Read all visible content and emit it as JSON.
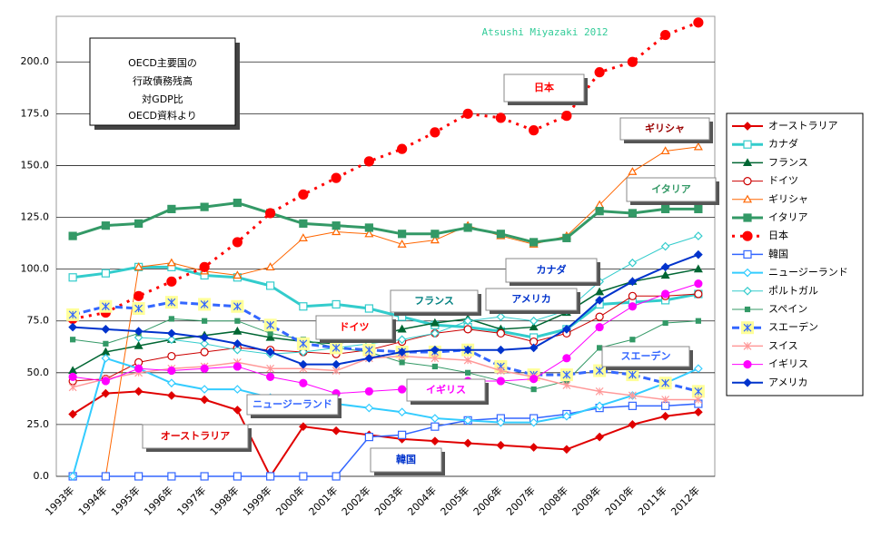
{
  "chart_data": {
    "type": "line",
    "title": "OECD主要国の\n行政債務残高\n対GDP比",
    "subtitle": "OECD資料より",
    "credit": "Atsushi Miyazaki 2012",
    "categories": [
      "1993年",
      "1994年",
      "1995年",
      "1996年",
      "1997年",
      "1998年",
      "1999年",
      "2000年",
      "2001年",
      "2002年",
      "2003年",
      "2004年",
      "2005年",
      "2006年",
      "2007年",
      "2008年",
      "2009年",
      "2010年",
      "2011年",
      "2012年"
    ],
    "ylim": [
      0,
      222
    ],
    "yticks": [
      {
        "value": 0,
        "label": "0.0"
      },
      {
        "value": 25,
        "label": "25.0"
      },
      {
        "value": 50,
        "label": "50.0"
      },
      {
        "value": 75,
        "label": "75.0"
      },
      {
        "value": 100,
        "label": "100.0"
      },
      {
        "value": 125,
        "label": "125.0"
      },
      {
        "value": 150,
        "label": "150.0"
      },
      {
        "value": 175,
        "label": "175.0"
      },
      {
        "value": 200,
        "label": "200.0"
      }
    ],
    "grid": true,
    "legend": "right",
    "series": [
      {
        "name": "オーストラリア",
        "color": "#e00000",
        "marker": "diamond",
        "width": 2,
        "values": [
          30,
          40,
          41,
          39,
          37,
          32,
          0,
          24,
          22,
          20,
          18,
          17,
          16,
          15,
          14,
          13,
          19,
          25,
          29,
          31
        ]
      },
      {
        "name": "カナダ",
        "color": "#33cccc",
        "marker": "osquare",
        "width": 3,
        "values": [
          96,
          98,
          101,
          101,
          97,
          96,
          92,
          82,
          83,
          81,
          77,
          73,
          72,
          70,
          67,
          71,
          83,
          84,
          85,
          88
        ]
      },
      {
        "name": "フランス",
        "color": "#006633",
        "marker": "triangle",
        "width": 1.5,
        "values": [
          51,
          60,
          63,
          66,
          68,
          70,
          67,
          65,
          64,
          67,
          71,
          74,
          76,
          71,
          72,
          79,
          89,
          94,
          97,
          100
        ]
      },
      {
        "name": "ドイツ",
        "color": "#cc0000",
        "marker": "ocircle",
        "width": 1,
        "values": [
          46,
          47,
          55,
          58,
          60,
          62,
          61,
          60,
          59,
          61,
          65,
          69,
          71,
          69,
          65,
          69,
          77,
          87,
          87,
          88
        ]
      },
      {
        "name": "ギリシャ",
        "color": "#ff6600",
        "marker": "otriangle",
        "width": 1,
        "values": [
          null,
          0,
          101,
          103,
          99,
          97,
          101,
          115,
          118,
          117,
          112,
          114,
          121,
          116,
          112,
          116,
          131,
          147,
          157,
          159
        ]
      },
      {
        "name": "イタリア",
        "color": "#339966",
        "marker": "square",
        "width": 3,
        "values": [
          116,
          121,
          122,
          129,
          130,
          132,
          127,
          122,
          121,
          120,
          117,
          117,
          120,
          117,
          113,
          115,
          128,
          127,
          129,
          129
        ]
      },
      {
        "name": "日本",
        "color": "#ff0000",
        "marker": "circle",
        "width": 3,
        "dash": "3,6",
        "values": [
          76,
          79,
          87,
          94,
          101,
          113,
          127,
          136,
          144,
          152,
          158,
          166,
          175,
          173,
          167,
          174,
          195,
          200,
          213,
          219
        ]
      },
      {
        "name": "韓国",
        "color": "#3366ff",
        "marker": "osquare",
        "width": 1.5,
        "values": [
          0,
          0,
          0,
          0,
          0,
          0,
          0,
          0,
          0,
          19,
          20,
          24,
          27,
          28,
          28,
          30,
          33,
          34,
          34,
          35
        ]
      },
      {
        "name": "ニュージーランド",
        "color": "#33ccff",
        "marker": "odiamond",
        "width": 2,
        "values": [
          0,
          57,
          52,
          45,
          42,
          42,
          38,
          36,
          35,
          33,
          31,
          28,
          27,
          26,
          26,
          29,
          34,
          39,
          45,
          52
        ]
      },
      {
        "name": "ポルトガル",
        "color": "#33cccc",
        "marker": "odiamond",
        "width": 1,
        "values": [
          null,
          null,
          67,
          66,
          64,
          61,
          59,
          60,
          62,
          64,
          66,
          69,
          75,
          77,
          75,
          80,
          94,
          103,
          111,
          116
        ]
      },
      {
        "name": "スペイン",
        "color": "#339966",
        "marker": "smallsquare",
        "width": 1,
        "values": [
          66,
          64,
          69,
          76,
          75,
          75,
          69,
          66,
          62,
          60,
          55,
          53,
          50,
          46,
          42,
          46,
          62,
          66,
          74,
          75
        ]
      },
      {
        "name": "スエーデン",
        "color": "#3366ff",
        "marker": "xbox",
        "width": 3,
        "dash": "8,4",
        "values": [
          78,
          82,
          81,
          84,
          83,
          82,
          73,
          64,
          62,
          61,
          60,
          60,
          61,
          53,
          49,
          49,
          51,
          49,
          45,
          41
        ]
      },
      {
        "name": "スイス",
        "color": "#ff9999",
        "marker": "x",
        "width": 1.5,
        "values": [
          43,
          47,
          50,
          52,
          53,
          55,
          52,
          52,
          51,
          57,
          58,
          57,
          56,
          51,
          48,
          44,
          41,
          39,
          37,
          37
        ]
      },
      {
        "name": "イギリス",
        "color": "#ff00ff",
        "marker": "circle",
        "width": 1,
        "values": [
          48,
          46,
          52,
          51,
          52,
          53,
          48,
          45,
          40,
          41,
          42,
          43,
          46,
          46,
          47,
          57,
          72,
          82,
          88,
          93
        ]
      },
      {
        "name": "アメリカ",
        "color": "#0033cc",
        "marker": "diamond",
        "width": 2,
        "values": [
          72,
          71,
          70,
          69,
          67,
          64,
          60,
          54,
          54,
          57,
          60,
          61,
          61,
          61,
          62,
          71,
          85,
          94,
          101,
          107
        ]
      }
    ],
    "annotations": [
      {
        "text": "日本",
        "color": "#ff0000"
      },
      {
        "text": "ギリシャ",
        "color": "#990000"
      },
      {
        "text": "イタリア",
        "color": "#339966"
      },
      {
        "text": "カナダ",
        "color": "#0033cc"
      },
      {
        "text": "フランス",
        "color": "#008080"
      },
      {
        "text": "アメリカ",
        "color": "#0033cc"
      },
      {
        "text": "ドイツ",
        "color": "#ff0000"
      },
      {
        "text": "スエーデン",
        "color": "#3366ff"
      },
      {
        "text": "ニュージーランド",
        "color": "#3366ff"
      },
      {
        "text": "イギリス",
        "color": "#ff00ff"
      },
      {
        "text": "オーストラリア",
        "color": "#e00000"
      },
      {
        "text": "韓国",
        "color": "#0033cc"
      }
    ]
  }
}
